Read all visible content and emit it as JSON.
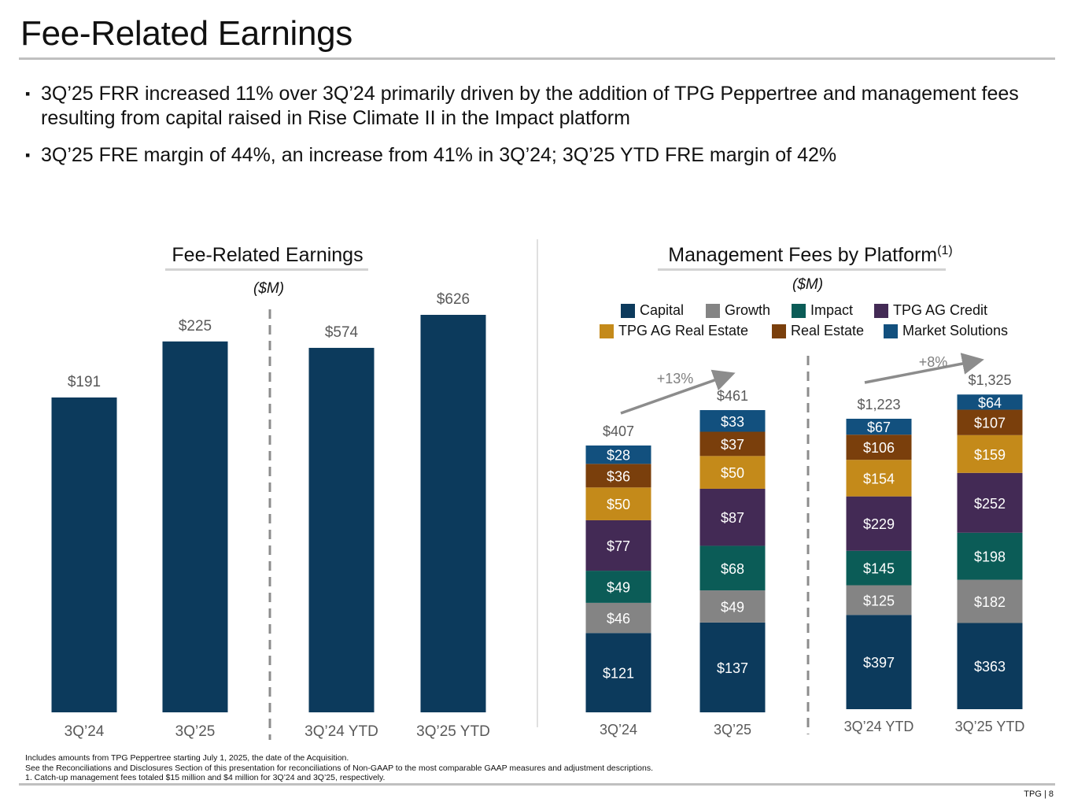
{
  "page": {
    "title": "Fee-Related Earnings",
    "bullets": [
      "3Q’25 FRR increased 11% over 3Q’24 primarily driven by the addition of TPG Peppertree and management fees resulting from capital raised in Rise Climate II in the Impact platform",
      "3Q’25 FRE margin of 44%, an increase from 41% in 3Q’24; 3Q’25 YTD FRE margin of 42%"
    ],
    "bullet_marker": "▪",
    "footnotes": [
      "Includes amounts from TPG Peppertree starting July 1, 2025, the date of the Acquisition.",
      "See the Reconciliations and Disclosures Section of this presentation for reconciliations of Non-GAAP to the most comparable GAAP measures and adjustment descriptions.",
      "1. Catch-up management fees totaled $15 million and $4 million for 3Q’24 and 3Q’25, respectively."
    ],
    "page_number": "TPG | 8"
  },
  "chart_data": [
    {
      "type": "bar",
      "title": "Fee-Related Earnings",
      "unit_label": "($M)",
      "categories": [
        "3Q’24",
        "3Q’25",
        "3Q’24 YTD",
        "3Q’25 YTD"
      ],
      "values": [
        191,
        225,
        574,
        626
      ],
      "value_labels": [
        "$191",
        "$225",
        "$574",
        "$626"
      ],
      "groups": [
        {
          "name": "quarter",
          "categories": [
            "3Q’24",
            "3Q’25"
          ],
          "ylim": [
            0,
            225
          ]
        },
        {
          "name": "ytd",
          "categories": [
            "3Q’24 YTD",
            "3Q’25 YTD"
          ],
          "ylim": [
            0,
            626
          ]
        }
      ],
      "bar_color": "#0c3a5c",
      "label_color": "#595959",
      "grid": false,
      "legend": "none"
    },
    {
      "type": "bar",
      "stacked": true,
      "title": "Management Fees by Platform",
      "title_superscript": "(1)",
      "unit_label": "($M)",
      "categories": [
        "3Q’24",
        "3Q’25",
        "3Q’24 YTD",
        "3Q’25 YTD"
      ],
      "series": [
        {
          "name": "Capital",
          "color": "#0c3a5c",
          "values": [
            121,
            137,
            397,
            363
          ]
        },
        {
          "name": "Growth",
          "color": "#848484",
          "values": [
            46,
            49,
            125,
            182
          ]
        },
        {
          "name": "Impact",
          "color": "#0b5c57",
          "values": [
            49,
            68,
            145,
            198
          ]
        },
        {
          "name": "TPG AG Credit",
          "color": "#432a55",
          "values": [
            77,
            87,
            229,
            252
          ]
        },
        {
          "name": "TPG AG Real Estate",
          "color": "#c48a1a",
          "values": [
            50,
            50,
            154,
            159
          ]
        },
        {
          "name": "Real Estate",
          "color": "#7a3f0c",
          "values": [
            36,
            37,
            106,
            107
          ]
        },
        {
          "name": "Market Solutions",
          "color": "#12507e",
          "values": [
            28,
            33,
            67,
            64
          ]
        }
      ],
      "totals": [
        407,
        461,
        1223,
        1325
      ],
      "total_labels": [
        "$407",
        "$461",
        "$1,223",
        "$1,325"
      ],
      "growth_annotations": [
        {
          "from": "3Q’24",
          "to": "3Q’25",
          "label": "+13%"
        },
        {
          "from": "3Q’24 YTD",
          "to": "3Q’25 YTD",
          "label": "+8%"
        }
      ],
      "legend": "top-center",
      "grid": false
    }
  ]
}
